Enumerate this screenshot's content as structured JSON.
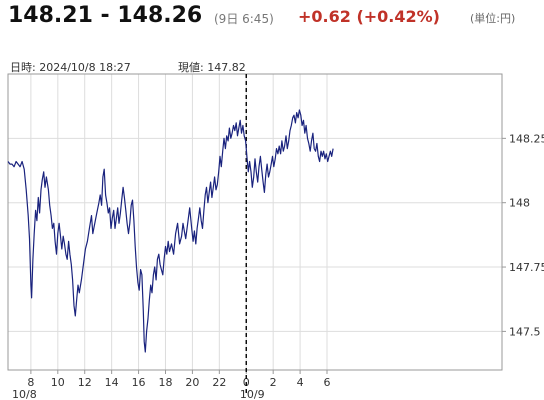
{
  "quote": {
    "price_range": "148.21 - 148.26",
    "as_of": "(9日 6:45)",
    "change": "+0.62 (+0.42%)",
    "unit": "(単位:円)"
  },
  "info": {
    "datetime": "日時: 2024/10/8  18:27",
    "current": "現値: 147.82"
  },
  "colors": {
    "line": "#1a237e",
    "change": "#c03228",
    "grid": "#dddddd",
    "frame": "#999999"
  },
  "chart_data": {
    "type": "line",
    "title": "",
    "xlabel": "",
    "ylabel": "",
    "ylim": [
      147.35,
      148.5
    ],
    "yticks": [
      147.5,
      147.75,
      148,
      148.25
    ],
    "ytick_labels": [
      "147.5",
      "147.75",
      "148",
      "148.25"
    ],
    "x_range_hours": [
      0,
      36.7
    ],
    "x_tick_labels": [
      "8",
      "10",
      "12",
      "14",
      "16",
      "18",
      "20",
      "22",
      "0",
      "2",
      "4",
      "6"
    ],
    "x_tick_positions": [
      1.7,
      3.7,
      5.7,
      7.7,
      9.7,
      11.7,
      13.7,
      15.7,
      17.7,
      19.7,
      21.7,
      23.7
    ],
    "day_labels": [
      {
        "label": "10/8",
        "at": 0
      },
      {
        "label": "10/9",
        "at": 17.7
      }
    ],
    "day_separator_at": 17.7,
    "grid": true,
    "series": [
      {
        "values": [
          [
            0.0,
            148.16
          ],
          [
            0.15,
            148.15
          ],
          [
            0.3,
            148.15
          ],
          [
            0.45,
            148.14
          ],
          [
            0.6,
            148.16
          ],
          [
            0.75,
            148.15
          ],
          [
            0.9,
            148.14
          ],
          [
            1.05,
            148.16
          ],
          [
            1.2,
            148.13
          ],
          [
            1.35,
            148.05
          ],
          [
            1.5,
            147.95
          ],
          [
            1.6,
            147.86
          ],
          [
            1.7,
            147.68
          ],
          [
            1.75,
            147.63
          ],
          [
            1.85,
            147.78
          ],
          [
            1.95,
            147.88
          ],
          [
            2.05,
            147.97
          ],
          [
            2.15,
            147.93
          ],
          [
            2.25,
            148.02
          ],
          [
            2.35,
            147.96
          ],
          [
            2.45,
            148.05
          ],
          [
            2.55,
            148.09
          ],
          [
            2.65,
            148.12
          ],
          [
            2.75,
            148.06
          ],
          [
            2.85,
            148.1
          ],
          [
            3.0,
            148.05
          ],
          [
            3.1,
            147.99
          ],
          [
            3.2,
            147.95
          ],
          [
            3.3,
            147.9
          ],
          [
            3.4,
            147.92
          ],
          [
            3.5,
            147.85
          ],
          [
            3.6,
            147.8
          ],
          [
            3.7,
            147.88
          ],
          [
            3.8,
            147.92
          ],
          [
            3.9,
            147.87
          ],
          [
            4.0,
            147.82
          ],
          [
            4.1,
            147.87
          ],
          [
            4.2,
            147.84
          ],
          [
            4.3,
            147.8
          ],
          [
            4.4,
            147.78
          ],
          [
            4.5,
            147.85
          ],
          [
            4.6,
            147.8
          ],
          [
            4.7,
            147.76
          ],
          [
            4.8,
            147.7
          ],
          [
            4.9,
            147.6
          ],
          [
            5.0,
            147.56
          ],
          [
            5.1,
            147.62
          ],
          [
            5.2,
            147.68
          ],
          [
            5.3,
            147.65
          ],
          [
            5.45,
            147.7
          ],
          [
            5.6,
            147.76
          ],
          [
            5.75,
            147.82
          ],
          [
            5.9,
            147.85
          ],
          [
            6.05,
            147.9
          ],
          [
            6.2,
            147.95
          ],
          [
            6.3,
            147.88
          ],
          [
            6.45,
            147.92
          ],
          [
            6.6,
            147.96
          ],
          [
            6.75,
            148.0
          ],
          [
            6.85,
            148.03
          ],
          [
            6.95,
            147.99
          ],
          [
            7.05,
            148.1
          ],
          [
            7.15,
            148.13
          ],
          [
            7.25,
            148.03
          ],
          [
            7.35,
            148.0
          ],
          [
            7.45,
            147.96
          ],
          [
            7.55,
            147.98
          ],
          [
            7.65,
            147.9
          ],
          [
            7.75,
            147.94
          ],
          [
            7.85,
            147.97
          ],
          [
            7.95,
            147.9
          ],
          [
            8.05,
            147.94
          ],
          [
            8.15,
            147.98
          ],
          [
            8.25,
            147.92
          ],
          [
            8.35,
            147.96
          ],
          [
            8.45,
            148.01
          ],
          [
            8.55,
            148.06
          ],
          [
            8.65,
            148.02
          ],
          [
            8.75,
            147.97
          ],
          [
            8.85,
            147.92
          ],
          [
            8.95,
            147.88
          ],
          [
            9.05,
            147.92
          ],
          [
            9.15,
            147.99
          ],
          [
            9.25,
            148.01
          ],
          [
            9.35,
            147.93
          ],
          [
            9.45,
            147.83
          ],
          [
            9.55,
            147.75
          ],
          [
            9.65,
            147.69
          ],
          [
            9.75,
            147.66
          ],
          [
            9.85,
            147.74
          ],
          [
            9.95,
            147.72
          ],
          [
            10.05,
            147.58
          ],
          [
            10.12,
            147.46
          ],
          [
            10.2,
            147.42
          ],
          [
            10.3,
            147.5
          ],
          [
            10.4,
            147.55
          ],
          [
            10.5,
            147.62
          ],
          [
            10.6,
            147.68
          ],
          [
            10.7,
            147.65
          ],
          [
            10.8,
            147.72
          ],
          [
            10.9,
            147.75
          ],
          [
            11.0,
            147.7
          ],
          [
            11.1,
            147.78
          ],
          [
            11.2,
            147.8
          ],
          [
            11.3,
            147.76
          ],
          [
            11.4,
            147.74
          ],
          [
            11.5,
            147.72
          ],
          [
            11.6,
            147.78
          ],
          [
            11.7,
            147.83
          ],
          [
            11.8,
            147.8
          ],
          [
            11.9,
            147.85
          ],
          [
            12.0,
            147.81
          ],
          [
            12.15,
            147.84
          ],
          [
            12.3,
            147.8
          ],
          [
            12.45,
            147.88
          ],
          [
            12.6,
            147.92
          ],
          [
            12.75,
            147.84
          ],
          [
            12.9,
            147.87
          ],
          [
            13.0,
            147.92
          ],
          [
            13.1,
            147.89
          ],
          [
            13.2,
            147.86
          ],
          [
            13.35,
            147.92
          ],
          [
            13.5,
            147.98
          ],
          [
            13.65,
            147.9
          ],
          [
            13.75,
            147.85
          ],
          [
            13.85,
            147.89
          ],
          [
            13.95,
            147.84
          ],
          [
            14.05,
            147.9
          ],
          [
            14.15,
            147.94
          ],
          [
            14.25,
            147.98
          ],
          [
            14.35,
            147.93
          ],
          [
            14.45,
            147.9
          ],
          [
            14.55,
            147.97
          ],
          [
            14.65,
            148.03
          ],
          [
            14.75,
            148.06
          ],
          [
            14.85,
            148.0
          ],
          [
            14.95,
            148.04
          ],
          [
            15.05,
            148.08
          ],
          [
            15.15,
            148.02
          ],
          [
            15.25,
            148.06
          ],
          [
            15.35,
            148.1
          ],
          [
            15.45,
            148.05
          ],
          [
            15.55,
            148.07
          ],
          [
            15.65,
            148.12
          ],
          [
            15.75,
            148.18
          ],
          [
            15.85,
            148.14
          ],
          [
            15.95,
            148.2
          ],
          [
            16.05,
            148.25
          ],
          [
            16.15,
            148.21
          ],
          [
            16.25,
            148.26
          ],
          [
            16.35,
            148.24
          ],
          [
            16.45,
            148.29
          ],
          [
            16.55,
            148.25
          ],
          [
            16.65,
            148.27
          ],
          [
            16.75,
            148.3
          ],
          [
            16.85,
            148.28
          ],
          [
            16.95,
            148.31
          ],
          [
            17.05,
            148.26
          ],
          [
            17.15,
            148.29
          ],
          [
            17.25,
            148.32
          ],
          [
            17.35,
            148.27
          ],
          [
            17.45,
            148.3
          ],
          [
            17.55,
            148.26
          ],
          [
            17.65,
            148.24
          ],
          [
            17.75,
            148.18
          ],
          [
            17.85,
            148.12
          ],
          [
            17.95,
            148.16
          ],
          [
            18.05,
            148.12
          ],
          [
            18.15,
            148.06
          ],
          [
            18.25,
            148.1
          ],
          [
            18.35,
            148.17
          ],
          [
            18.45,
            148.12
          ],
          [
            18.55,
            148.08
          ],
          [
            18.65,
            148.14
          ],
          [
            18.75,
            148.18
          ],
          [
            18.85,
            148.13
          ],
          [
            18.95,
            148.08
          ],
          [
            19.05,
            148.04
          ],
          [
            19.15,
            148.11
          ],
          [
            19.25,
            148.15
          ],
          [
            19.35,
            148.1
          ],
          [
            19.45,
            148.12
          ],
          [
            19.55,
            148.15
          ],
          [
            19.65,
            148.18
          ],
          [
            19.75,
            148.14
          ],
          [
            19.85,
            148.17
          ],
          [
            19.95,
            148.21
          ],
          [
            20.05,
            148.19
          ],
          [
            20.15,
            148.22
          ],
          [
            20.25,
            148.19
          ],
          [
            20.35,
            148.24
          ],
          [
            20.45,
            148.2
          ],
          [
            20.55,
            148.22
          ],
          [
            20.65,
            148.26
          ],
          [
            20.75,
            148.21
          ],
          [
            20.85,
            148.24
          ],
          [
            20.95,
            148.28
          ],
          [
            21.05,
            148.3
          ],
          [
            21.15,
            148.33
          ],
          [
            21.25,
            148.34
          ],
          [
            21.35,
            148.31
          ],
          [
            21.45,
            148.35
          ],
          [
            21.55,
            148.33
          ],
          [
            21.65,
            148.36
          ],
          [
            21.75,
            148.34
          ],
          [
            21.85,
            148.3
          ],
          [
            21.95,
            148.32
          ],
          [
            22.05,
            148.27
          ],
          [
            22.15,
            148.3
          ],
          [
            22.25,
            148.25
          ],
          [
            22.35,
            148.23
          ],
          [
            22.45,
            148.2
          ],
          [
            22.55,
            148.24
          ],
          [
            22.65,
            148.27
          ],
          [
            22.75,
            148.21
          ],
          [
            22.85,
            148.2
          ],
          [
            22.95,
            148.23
          ],
          [
            23.05,
            148.18
          ],
          [
            23.15,
            148.16
          ],
          [
            23.25,
            148.2
          ],
          [
            23.35,
            148.18
          ],
          [
            23.45,
            148.2
          ],
          [
            23.55,
            148.17
          ],
          [
            23.65,
            148.19
          ],
          [
            23.75,
            148.16
          ],
          [
            23.85,
            148.18
          ],
          [
            23.95,
            148.2
          ],
          [
            24.05,
            148.18
          ],
          [
            24.15,
            148.21
          ]
        ]
      }
    ]
  }
}
